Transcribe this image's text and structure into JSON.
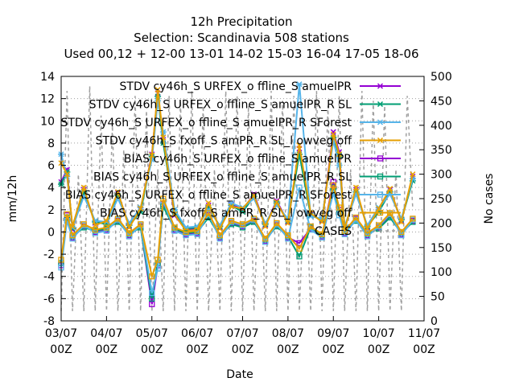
{
  "chart_data": {
    "type": "line",
    "title_lines": [
      "12h Precipitation",
      "Selection: Scandinavia     508 stations",
      "Used  00,12  + 12-00 13-01 14-02 15-03 16-04 17-05 18-06"
    ],
    "xlabel": "Date",
    "ylabel": "mm/12h",
    "y2label": "No cases",
    "xlim": [
      0,
      8
    ],
    "ylim": [
      -8,
      14
    ],
    "y2lim": [
      0,
      500
    ],
    "x_ticks": [
      "03/07\n00Z",
      "04/07\n00Z",
      "05/07\n00Z",
      "06/07\n00Z",
      "07/07\n00Z",
      "08/07\n00Z",
      "09/07\n00Z",
      "10/07\n00Z",
      "11/07\n00Z"
    ],
    "y_ticks": [
      -8,
      -6,
      -4,
      -2,
      0,
      2,
      4,
      6,
      8,
      10,
      12,
      14
    ],
    "y2_ticks": [
      0,
      50,
      100,
      150,
      200,
      250,
      300,
      350,
      400,
      450,
      500
    ],
    "grid": "horizontal-dotted",
    "legend_position": "top-right",
    "series": [
      {
        "name": "STDV cy46h_S URFEX_o ffline_S amuelPR",
        "color": "#9400d3",
        "marker": "x",
        "axis": "y1",
        "x": [
          0,
          0.13,
          0.25,
          0.5,
          0.75,
          1,
          1.25,
          1.5,
          1.75,
          2,
          2.13,
          2.25,
          2.5,
          2.75,
          3,
          3.25,
          3.5,
          3.75,
          4,
          4.25,
          4.5,
          4.75,
          5,
          5.25,
          5.5,
          5.75,
          6,
          6.13,
          6.25,
          6.5,
          6.75,
          7,
          7.25,
          7.5,
          7.75
        ],
        "y": [
          4.5,
          5.6,
          0.2,
          3.8,
          0.8,
          0.8,
          3.5,
          0.5,
          2.0,
          7.0,
          12.5,
          8.3,
          1.5,
          0.2,
          0.3,
          2.4,
          0.4,
          2.5,
          2.0,
          3.4,
          0.6,
          2.8,
          0.9,
          7.5,
          1.6,
          1.0,
          9.0,
          7.2,
          0.3,
          3.8,
          0.4,
          2.0,
          3.8,
          1.0,
          5.0
        ]
      },
      {
        "name": "STDV cy46h_S URFEX_o ffline_S amuelPR_R SL",
        "color": "#009e73",
        "marker": "*",
        "axis": "y1",
        "x": [
          0,
          0.13,
          0.25,
          0.5,
          0.75,
          1,
          1.25,
          1.5,
          1.75,
          2,
          2.13,
          2.25,
          2.5,
          2.75,
          3,
          3.25,
          3.5,
          3.75,
          4,
          4.25,
          4.5,
          4.75,
          5,
          5.25,
          5.5,
          5.75,
          6,
          6.13,
          6.25,
          6.5,
          6.75,
          7,
          7.25,
          7.5,
          7.75
        ],
        "y": [
          4.3,
          5.4,
          0.3,
          3.6,
          0.9,
          0.7,
          3.3,
          0.6,
          1.8,
          6.8,
          12.2,
          8.0,
          1.8,
          0.3,
          0.4,
          2.2,
          0.5,
          2.4,
          1.8,
          3.2,
          0.7,
          2.6,
          1.0,
          7.0,
          1.5,
          1.1,
          8.5,
          6.9,
          0.4,
          3.6,
          0.5,
          1.8,
          3.6,
          1.1,
          4.6
        ]
      },
      {
        "name": "STDV cy46h_S URFEX_o ffline_S amuelPR_R SForest",
        "color": "#56b4e9",
        "marker": "*",
        "axis": "y1",
        "x": [
          0,
          0.13,
          0.25,
          0.5,
          0.75,
          1,
          1.25,
          1.5,
          1.75,
          2,
          2.13,
          2.25,
          2.5,
          2.75,
          3,
          3.25,
          3.5,
          3.75,
          4,
          4.25,
          4.5,
          4.75,
          5,
          5.25,
          5.5,
          5.75,
          6,
          6.13,
          6.25,
          6.5,
          6.75,
          7,
          7.25,
          7.5,
          7.75
        ],
        "y": [
          7.0,
          5.0,
          0.4,
          3.2,
          1.0,
          0.9,
          3.0,
          0.8,
          2.2,
          6.5,
          11.8,
          9.0,
          2.0,
          0.4,
          0.5,
          2.0,
          0.6,
          2.6,
          2.2,
          3.0,
          0.8,
          2.4,
          1.2,
          13.3,
          1.4,
          1.2,
          8.2,
          6.0,
          0.5,
          3.4,
          0.6,
          2.2,
          3.4,
          1.2,
          4.8
        ]
      },
      {
        "name": "STDV cy46h_S fxoff_S amPR_R SL_l owveg off",
        "color": "#e69f00",
        "marker": "x",
        "axis": "y1",
        "x": [
          0,
          0.13,
          0.25,
          0.5,
          0.75,
          1,
          1.25,
          1.5,
          1.75,
          2,
          2.13,
          2.25,
          2.5,
          2.75,
          3,
          3.25,
          3.5,
          3.75,
          4,
          4.25,
          4.5,
          4.75,
          5,
          5.25,
          5.5,
          5.75,
          6,
          6.13,
          6.25,
          6.5,
          6.75,
          7,
          7.25,
          7.5,
          7.75
        ],
        "y": [
          6.2,
          5.2,
          0.5,
          4.0,
          0.6,
          1.0,
          3.6,
          0.4,
          2.1,
          6.9,
          12.8,
          8.5,
          1.6,
          0.1,
          0.2,
          2.6,
          0.3,
          2.3,
          2.1,
          3.3,
          0.5,
          2.7,
          0.8,
          7.8,
          1.7,
          0.9,
          8.8,
          7.0,
          0.2,
          4.0,
          0.3,
          2.1,
          3.9,
          0.9,
          5.2
        ]
      },
      {
        "name": "BIAS cy46h_S URFEX_o ffline_S amuelPR",
        "color": "#9400d3",
        "marker": "square",
        "axis": "y1",
        "x": [
          0,
          0.13,
          0.25,
          0.5,
          0.75,
          1,
          1.25,
          1.5,
          1.75,
          2,
          2.13,
          2.25,
          2.5,
          2.75,
          3,
          3.25,
          3.5,
          3.75,
          4,
          4.25,
          4.5,
          4.75,
          5,
          5.25,
          5.5,
          5.75,
          6,
          6.13,
          6.25,
          6.5,
          6.75,
          7,
          7.25,
          7.5,
          7.75
        ],
        "y": [
          -3.0,
          1.5,
          -0.5,
          0.5,
          0.0,
          0.2,
          1.0,
          -0.3,
          0.5,
          -6.5,
          -3.0,
          2.5,
          0.2,
          -0.2,
          -0.1,
          1.5,
          -0.5,
          0.8,
          0.5,
          1.0,
          -0.8,
          0.6,
          -0.5,
          -1.0,
          0.3,
          -0.4,
          4.5,
          2.0,
          -0.1,
          1.2,
          -0.3,
          0.4,
          1.5,
          -0.2,
          1.0
        ]
      },
      {
        "name": "BIAS cy46h_S URFEX_o ffline_S amuelPR_R SL",
        "color": "#009e73",
        "marker": "square",
        "axis": "y1",
        "x": [
          0,
          0.13,
          0.25,
          0.5,
          0.75,
          1,
          1.25,
          1.5,
          1.75,
          2,
          2.13,
          2.25,
          2.5,
          2.75,
          3,
          3.25,
          3.5,
          3.75,
          4,
          4.25,
          4.5,
          4.75,
          5,
          5.25,
          5.5,
          5.75,
          6,
          6.13,
          6.25,
          6.5,
          6.75,
          7,
          7.25,
          7.5,
          7.75
        ],
        "y": [
          -2.8,
          1.3,
          -0.4,
          0.4,
          0.1,
          0.3,
          0.9,
          -0.2,
          0.4,
          -6.0,
          -2.8,
          2.3,
          0.3,
          -0.1,
          0.0,
          1.3,
          -0.4,
          0.7,
          0.4,
          0.9,
          -0.7,
          0.5,
          -0.4,
          -2.2,
          0.4,
          -0.3,
          4.0,
          1.8,
          0.0,
          1.0,
          -0.2,
          0.3,
          1.3,
          -0.1,
          0.9
        ]
      },
      {
        "name": "BIAS cy46h_S URFEX_o ffline_S amuelPR_R SForest",
        "color": "#56b4e9",
        "marker": "square",
        "axis": "y1",
        "x": [
          0,
          0.13,
          0.25,
          0.5,
          0.75,
          1,
          1.25,
          1.5,
          1.75,
          2,
          2.13,
          2.25,
          2.5,
          2.75,
          3,
          3.25,
          3.5,
          3.75,
          4,
          4.25,
          4.5,
          4.75,
          5,
          5.25,
          5.5,
          5.75,
          6,
          6.13,
          6.25,
          6.5,
          6.75,
          7,
          7.25,
          7.5,
          7.75
        ],
        "y": [
          -3.2,
          1.0,
          -0.6,
          0.6,
          -0.1,
          0.1,
          1.1,
          -0.4,
          0.6,
          -5.5,
          -3.3,
          2.8,
          0.1,
          -0.3,
          -0.2,
          1.6,
          -0.6,
          0.9,
          0.6,
          1.1,
          -0.9,
          0.7,
          -0.6,
          4.0,
          0.2,
          -0.5,
          3.5,
          1.5,
          -0.2,
          1.1,
          -0.4,
          0.5,
          1.6,
          -0.3,
          1.1
        ]
      },
      {
        "name": "BIAS cy46h_S fxoff_S amPR_R SL_l owveg off",
        "color": "#e69f00",
        "marker": "square",
        "axis": "y1",
        "x": [
          0,
          0.13,
          0.25,
          0.5,
          0.75,
          1,
          1.25,
          1.5,
          1.75,
          2,
          2.13,
          2.25,
          2.5,
          2.75,
          3,
          3.25,
          3.5,
          3.75,
          4,
          4.25,
          4.5,
          4.75,
          5,
          5.25,
          5.5,
          5.75,
          6,
          6.13,
          6.25,
          6.5,
          6.75,
          7,
          7.25,
          7.5,
          7.75
        ],
        "y": [
          -2.5,
          1.6,
          -0.3,
          0.7,
          0.2,
          0.4,
          1.2,
          -0.1,
          0.7,
          -4.0,
          -2.5,
          3.0,
          0.4,
          0.0,
          0.1,
          1.7,
          -0.3,
          1.0,
          0.7,
          1.2,
          -0.6,
          0.8,
          -0.3,
          -1.5,
          0.5,
          -0.2,
          4.2,
          2.2,
          0.1,
          1.3,
          -0.1,
          0.6,
          1.7,
          0.0,
          1.2
        ]
      },
      {
        "name": "CASES",
        "color": "#a0a0a0",
        "marker": "none",
        "dashed": true,
        "axis": "y2",
        "x": [
          0,
          0.13,
          0.25,
          0.38,
          0.5,
          0.63,
          0.75,
          0.88,
          1,
          1.13,
          1.25,
          1.38,
          1.5,
          1.63,
          1.75,
          1.88,
          2,
          2.13,
          2.25,
          2.38,
          2.5,
          2.63,
          2.75,
          2.88,
          3,
          3.13,
          3.25,
          3.38,
          3.5,
          3.63,
          3.75,
          3.88,
          4,
          4.13,
          4.25,
          4.38,
          4.5,
          4.63,
          4.75,
          4.88,
          5,
          5.13,
          5.25,
          5.38,
          5.5,
          5.63,
          5.75,
          5.88,
          6,
          6.13,
          6.25,
          6.38,
          6.5,
          6.63,
          6.75,
          6.88,
          7,
          7.13,
          7.25,
          7.38,
          7.5,
          7.63,
          7.75
        ],
        "y": [
          20,
          470,
          20,
          300,
          20,
          480,
          20,
          420,
          20,
          400,
          20,
          350,
          20,
          460,
          20,
          430,
          20,
          310,
          20,
          460,
          20,
          450,
          20,
          470,
          20,
          440,
          20,
          310,
          20,
          470,
          20,
          460,
          20,
          440,
          20,
          330,
          20,
          470,
          20,
          450,
          20,
          460,
          20,
          310,
          20,
          470,
          20,
          440,
          20,
          460,
          20,
          310,
          20,
          470,
          20,
          450,
          20,
          440,
          20,
          310,
          20,
          460,
          230
        ]
      }
    ]
  }
}
